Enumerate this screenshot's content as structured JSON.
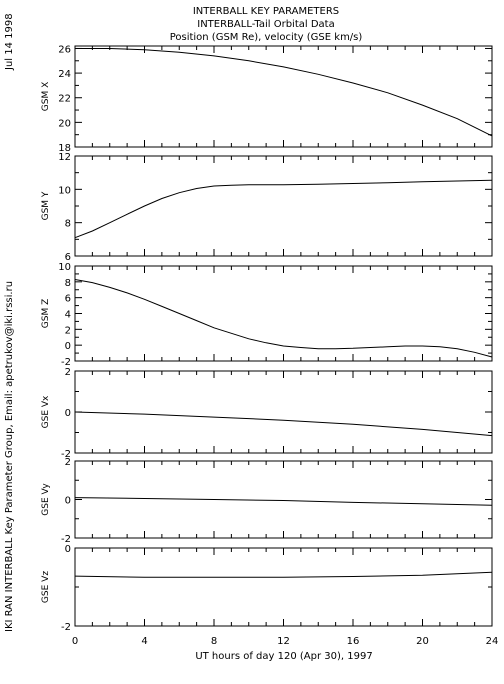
{
  "header": {
    "title_lines": [
      "INTERBALL KEY PARAMETERS",
      "INTERBALL-Tail Orbital Data",
      "Position (GSM Re), velocity (GSE km/s)"
    ]
  },
  "side": {
    "date": "Jul 14 1998",
    "credit": "IKI RAN INTERBALL Key Parameter Group, Email: apetrukov@iki.rssi.ru"
  },
  "chart_data": {
    "type": "line",
    "xlabel": "UT hours of day 120 (Apr 30), 1997",
    "xlim": [
      0,
      24
    ],
    "xticks": [
      0,
      4,
      8,
      12,
      16,
      20,
      24
    ],
    "xtick_labels": [
      "0",
      "4",
      "8",
      "12",
      "16",
      "20",
      "24"
    ],
    "line_color": "#000000",
    "panels": [
      {
        "ylabel": "GSM X",
        "ylim": [
          18,
          26.2
        ],
        "yticks": [
          18,
          20,
          22,
          24,
          26
        ],
        "ytick_labels": [
          "18",
          "20",
          "22",
          "24",
          "26"
        ],
        "x": [
          0,
          2,
          4,
          6,
          8,
          10,
          12,
          14,
          16,
          18,
          20,
          22,
          24
        ],
        "y": [
          26.0,
          26.0,
          25.9,
          25.7,
          25.4,
          25.0,
          24.5,
          23.9,
          23.2,
          22.4,
          21.4,
          20.3,
          18.9
        ]
      },
      {
        "ylabel": "GSM Y",
        "ylim": [
          6,
          12
        ],
        "yticks": [
          6,
          8,
          10,
          12
        ],
        "ytick_labels": [
          "6",
          "8",
          "10",
          "12"
        ],
        "x": [
          0,
          1,
          2,
          3,
          4,
          5,
          6,
          7,
          8,
          9,
          10,
          12,
          14,
          16,
          18,
          20,
          22,
          24
        ],
        "y": [
          7.1,
          7.5,
          8.0,
          8.5,
          9.0,
          9.45,
          9.8,
          10.05,
          10.2,
          10.25,
          10.27,
          10.28,
          10.3,
          10.35,
          10.4,
          10.45,
          10.5,
          10.55
        ]
      },
      {
        "ylabel": "GSM Z",
        "ylim": [
          -2,
          10
        ],
        "yticks": [
          -2,
          0,
          2,
          4,
          6,
          8,
          10
        ],
        "ytick_labels": [
          "-2",
          "0",
          "2",
          "4",
          "6",
          "8",
          "10"
        ],
        "x": [
          0,
          1,
          2,
          3,
          4,
          5,
          6,
          7,
          8,
          9,
          10,
          11,
          12,
          13,
          14,
          15,
          16,
          17,
          18,
          19,
          20,
          21,
          22,
          23,
          24
        ],
        "y": [
          8.3,
          7.9,
          7.3,
          6.6,
          5.8,
          4.9,
          4.0,
          3.1,
          2.2,
          1.5,
          0.8,
          0.3,
          -0.1,
          -0.3,
          -0.45,
          -0.45,
          -0.4,
          -0.3,
          -0.2,
          -0.1,
          -0.1,
          -0.2,
          -0.45,
          -0.9,
          -1.5
        ]
      },
      {
        "ylabel": "GSE Vx",
        "ylim": [
          -2,
          2
        ],
        "yticks": [
          -2,
          0,
          2
        ],
        "ytick_labels": [
          "-2",
          "0",
          "2"
        ],
        "x": [
          0,
          4,
          8,
          12,
          16,
          20,
          24
        ],
        "y": [
          0.0,
          -0.1,
          -0.25,
          -0.4,
          -0.6,
          -0.85,
          -1.15
        ]
      },
      {
        "ylabel": "GSE Vy",
        "ylim": [
          -2,
          2
        ],
        "yticks": [
          -2,
          0,
          2
        ],
        "ytick_labels": [
          "-2",
          "0",
          "2"
        ],
        "x": [
          0,
          4,
          8,
          12,
          16,
          20,
          24
        ],
        "y": [
          0.1,
          0.05,
          0.0,
          -0.05,
          -0.15,
          -0.22,
          -0.3
        ]
      },
      {
        "ylabel": "GSE Vz",
        "ylim": [
          -2,
          0
        ],
        "yticks": [
          -2,
          0
        ],
        "ytick_labels": [
          "-2",
          "0"
        ],
        "x": [
          0,
          4,
          8,
          12,
          16,
          20,
          24
        ],
        "y": [
          -0.72,
          -0.75,
          -0.75,
          -0.75,
          -0.73,
          -0.7,
          -0.62
        ]
      }
    ]
  }
}
